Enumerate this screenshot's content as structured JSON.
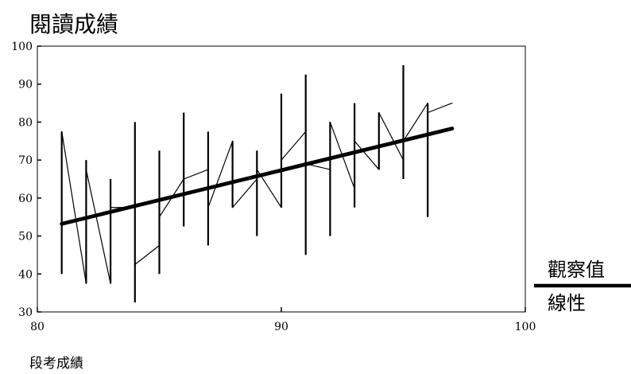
{
  "chart_data": {
    "type": "line",
    "title": "閱讀成績",
    "xlabel": "段考成績",
    "ylabel": "",
    "xlim": [
      80,
      100
    ],
    "ylim": [
      30,
      100
    ],
    "xticks": [
      80,
      90,
      100
    ],
    "yticks": [
      30,
      40,
      50,
      60,
      70,
      80,
      90,
      100
    ],
    "grid": false,
    "legend_position": "right",
    "series": [
      {
        "name": "觀察值",
        "style": "thin",
        "x": [
          81,
          81,
          82,
          82,
          83,
          83,
          84,
          84,
          85,
          85,
          86,
          86,
          87,
          87,
          88,
          88,
          89,
          89,
          90,
          90,
          91,
          91,
          92,
          92,
          93,
          93,
          94,
          94,
          95,
          95,
          96,
          96,
          97
        ],
        "y": [
          67.5,
          77.5,
          37.5,
          67.5,
          37.5,
          57.5,
          57.5,
          42.5,
          47.5,
          55,
          65,
          65,
          67.5,
          57.5,
          75,
          57.5,
          65,
          67.5,
          57.5,
          70,
          77.5,
          69,
          67.5,
          80,
          62.5,
          75,
          67.5,
          82.5,
          70,
          75,
          85,
          82.5,
          85
        ]
      },
      {
        "name": "線性",
        "style": "thick",
        "x": [
          81,
          97
        ],
        "y": [
          53.2,
          78.3
        ]
      }
    ],
    "ranges": [
      {
        "x": 81,
        "low": 40,
        "high": 77.5
      },
      {
        "x": 82,
        "low": 37.5,
        "high": 70
      },
      {
        "x": 83,
        "low": 37.5,
        "high": 65
      },
      {
        "x": 84,
        "low": 32.5,
        "high": 80
      },
      {
        "x": 85,
        "low": 40,
        "high": 72.5
      },
      {
        "x": 86,
        "low": 52.5,
        "high": 82.5
      },
      {
        "x": 87,
        "low": 47.5,
        "high": 77.5
      },
      {
        "x": 88,
        "low": 57.5,
        "high": 75
      },
      {
        "x": 89,
        "low": 50,
        "high": 72.5
      },
      {
        "x": 90,
        "low": 57.5,
        "high": 87.5
      },
      {
        "x": 91,
        "low": 45,
        "high": 92.5
      },
      {
        "x": 92,
        "low": 50,
        "high": 80
      },
      {
        "x": 93,
        "low": 57.5,
        "high": 85
      },
      {
        "x": 94,
        "low": 67.5,
        "high": 82.5
      },
      {
        "x": 95,
        "low": 65,
        "high": 95
      },
      {
        "x": 96,
        "low": 55,
        "high": 85
      }
    ]
  }
}
